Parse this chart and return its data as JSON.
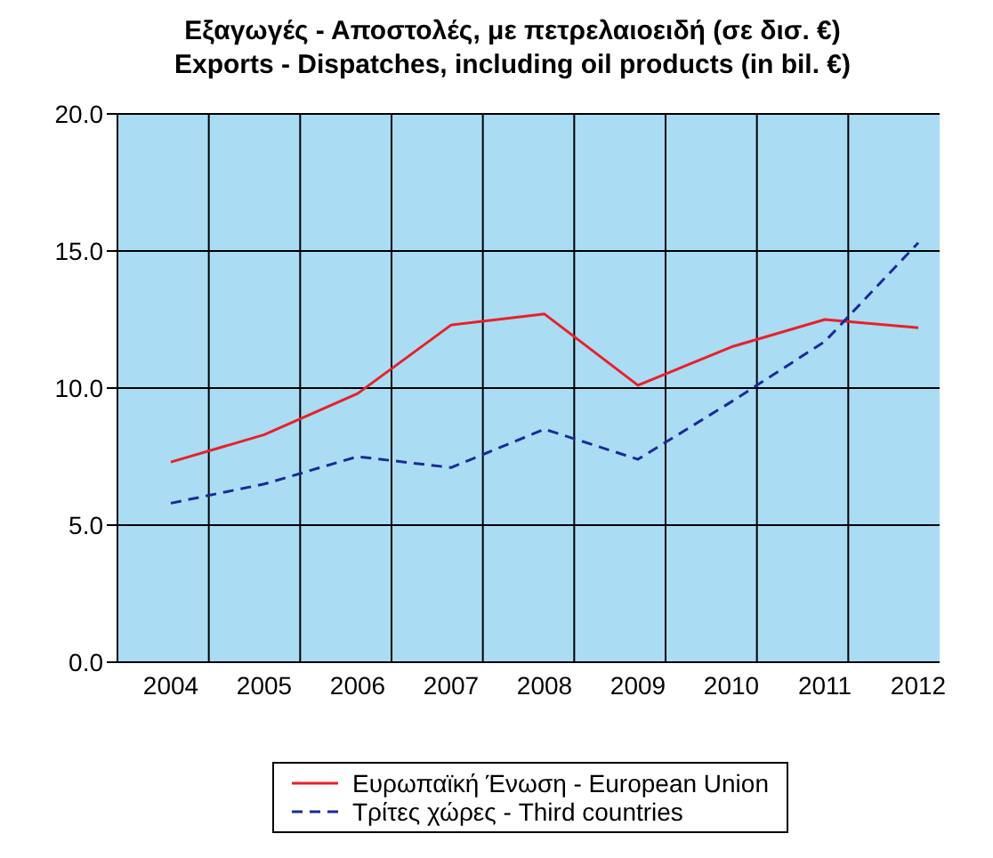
{
  "chart_data": {
    "type": "line",
    "title": "Εξαγωγές - Αποστολές, με πετρελαιοειδή (σε δισ. €)\nExports - Dispatches, including oil products (in bil. €)",
    "categories": [
      "2004",
      "2005",
      "2006",
      "2007",
      "2008",
      "2009",
      "2010",
      "2011",
      "2012"
    ],
    "series": [
      {
        "name": "Ευρωπαϊκή Ένωση - European Union",
        "color": "#e8202a",
        "line_style": "solid",
        "values": [
          7.3,
          8.3,
          9.8,
          12.3,
          12.7,
          10.1,
          11.5,
          12.5,
          12.2
        ]
      },
      {
        "name": "Τρίτες χώρες - Third countries",
        "color": "#1a2a9a",
        "line_style": "dashed",
        "values": [
          5.8,
          6.5,
          7.5,
          7.1,
          8.5,
          7.4,
          9.5,
          11.7,
          15.3
        ]
      }
    ],
    "ylim": [
      0,
      20
    ],
    "yticks": [
      {
        "value": 0,
        "label": "0.0"
      },
      {
        "value": 5,
        "label": "5.0"
      },
      {
        "value": 10,
        "label": "10.0"
      },
      {
        "value": 15,
        "label": "15.0"
      },
      {
        "value": 20,
        "label": "20.0"
      }
    ],
    "grid": true,
    "legend": "bottom",
    "marker": "none"
  }
}
